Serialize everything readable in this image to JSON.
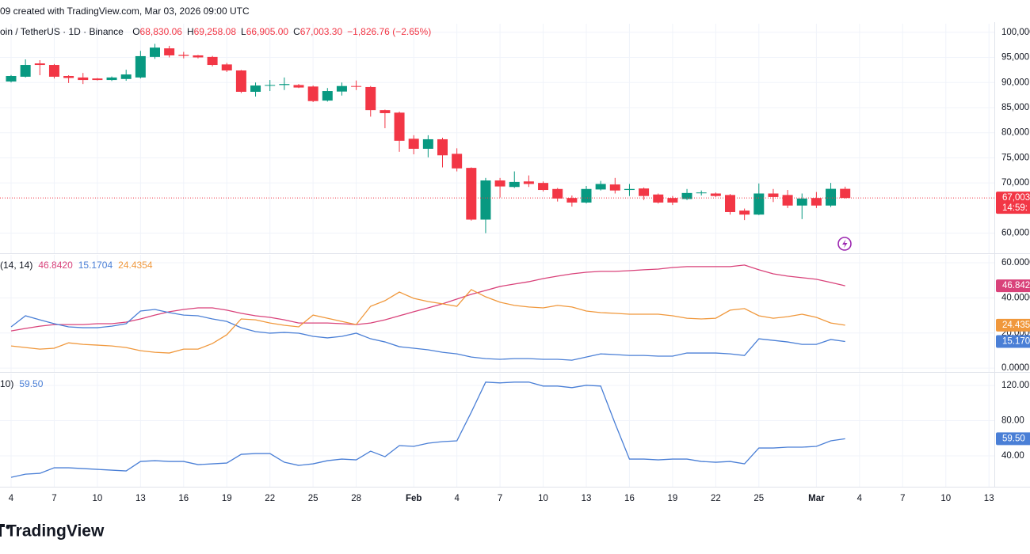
{
  "header": {
    "created": "09 created with TradingView.com, Mar 03, 2026 09:00 UTC",
    "symbol": "oin / TetherUS · 1D · Binance",
    "ohlc": [
      {
        "key": "O",
        "value": "68,830.06"
      },
      {
        "key": "H",
        "value": "69,258.08"
      },
      {
        "key": "L",
        "value": "66,905.00"
      },
      {
        "key": "C",
        "value": "67,003.30"
      }
    ],
    "change": "−1,826.76 (−2.65%)"
  },
  "branding": "TradingView",
  "chart_data": [
    {
      "type": "candlestick",
      "categories": [
        "4",
        null,
        null,
        "7",
        null,
        null,
        "10",
        null,
        null,
        "13",
        null,
        null,
        "16",
        null,
        null,
        "19",
        null,
        null,
        "22",
        null,
        null,
        "25",
        null,
        null,
        "28",
        null,
        null,
        null,
        "Feb",
        null,
        null,
        "4",
        null,
        null,
        "7",
        null,
        null,
        "10",
        null,
        null,
        "13",
        null,
        null,
        "16",
        null,
        null,
        "19",
        null,
        null,
        "22",
        null,
        null,
        "25",
        null,
        null,
        null,
        "Mar",
        null,
        null,
        "4",
        null,
        null,
        "7",
        null,
        null,
        "10",
        null,
        null,
        "13"
      ],
      "open": [
        90200,
        91150,
        93800,
        93500,
        91300,
        91000,
        90800,
        90500,
        90700,
        91000,
        95100,
        96800,
        95500,
        95400,
        95100,
        93600,
        92400,
        88150,
        89400,
        89500,
        89500,
        89200,
        86400,
        88200,
        89300,
        89100,
        84500,
        84000,
        78800,
        76800,
        78700,
        75800,
        73000,
        62700,
        70500,
        69200,
        70300,
        70000,
        68800,
        67000,
        66100,
        68700,
        69700,
        68600,
        68900,
        67700,
        67000,
        66800,
        68000,
        67900,
        67600,
        64500,
        63700,
        67900,
        67600,
        65500,
        67000,
        65500,
        68830.06,
        null,
        null,
        null,
        null,
        null,
        null,
        null,
        null,
        null,
        null
      ],
      "high": [
        91500,
        94600,
        94450,
        93700,
        91450,
        91900,
        90900,
        91200,
        92550,
        96300,
        97700,
        97300,
        96100,
        95500,
        95300,
        93900,
        92500,
        90000,
        90500,
        91000,
        89700,
        89400,
        88900,
        90000,
        90400,
        89300,
        84600,
        84200,
        79500,
        79500,
        79000,
        76900,
        73100,
        71000,
        71000,
        72300,
        71500,
        70300,
        69000,
        67500,
        69400,
        70400,
        71000,
        69800,
        69100,
        67900,
        67400,
        68800,
        68500,
        68100,
        67800,
        64900,
        69900,
        68800,
        68600,
        67900,
        68200,
        70000,
        69258.08,
        null,
        null,
        null,
        null,
        null,
        null,
        null,
        null,
        null,
        null
      ],
      "low": [
        90000,
        91000,
        91450,
        90800,
        89900,
        89700,
        90400,
        90300,
        90350,
        90800,
        94700,
        95000,
        94800,
        94800,
        93200,
        92100,
        87900,
        87200,
        88300,
        88500,
        88900,
        86100,
        86200,
        87400,
        88500,
        83200,
        80900,
        76200,
        75700,
        75100,
        73100,
        72300,
        62500,
        60000,
        67100,
        69000,
        69200,
        68300,
        66300,
        65300,
        65900,
        68500,
        67900,
        67400,
        66600,
        65900,
        65600,
        66600,
        67500,
        67200,
        63700,
        62600,
        63600,
        66200,
        65000,
        62800,
        65000,
        65200,
        66905.0,
        null,
        null,
        null,
        null,
        null,
        null,
        null,
        null,
        null,
        null
      ],
      "close": [
        91300,
        93500,
        93500,
        91150,
        90900,
        90500,
        90500,
        91000,
        91600,
        95250,
        96950,
        95400,
        95300,
        95000,
        93500,
        92400,
        88150,
        89400,
        89500,
        89700,
        89000,
        86300,
        88300,
        89300,
        89200,
        84500,
        83900,
        78400,
        76800,
        78700,
        75500,
        72900,
        62700,
        70500,
        69300,
        70200,
        69800,
        68600,
        66900,
        66100,
        68800,
        69800,
        68500,
        68800,
        67400,
        66100,
        66100,
        68000,
        68100,
        67400,
        64200,
        63700,
        67900,
        67200,
        65500,
        66900,
        65500,
        68830,
        67003.3,
        null,
        null,
        null,
        null,
        null,
        null,
        null,
        null,
        null,
        null
      ],
      "up_color": "#089981",
      "down_color": "#f23645",
      "ylim": [
        56000,
        101700
      ],
      "yticks": [
        {
          "value": 60000,
          "label": "60,000"
        },
        {
          "value": 70000,
          "label": "70,000"
        },
        {
          "value": 75000,
          "label": "75,000"
        },
        {
          "value": 80000,
          "label": "80,000"
        },
        {
          "value": 85000,
          "label": "85,000"
        },
        {
          "value": 90000,
          "label": "90,000"
        },
        {
          "value": 95000,
          "label": "95,000"
        },
        {
          "value": 100000,
          "label": "100,000"
        }
      ],
      "grid": true,
      "last_price_label": "67,003",
      "countdown": "14:59:"
    },
    {
      "type": "line",
      "legend_label": "(14, 14)",
      "ylim": [
        -2.2,
        64.5
      ],
      "yticks": [
        {
          "value": 0,
          "label": "0.0000"
        },
        {
          "value": 20,
          "label": "20.0000"
        },
        {
          "value": 40,
          "label": "40.0000"
        },
        {
          "value": 60,
          "label": "60.0000"
        }
      ],
      "grid": true,
      "series": [
        {
          "color": "#d9427a",
          "legend_value": "46.8420",
          "last_value_label": "46.842",
          "values": [
            21.2,
            22.6,
            23.9,
            24.8,
            24.8,
            24.8,
            25.3,
            25.3,
            26.2,
            28.0,
            30.2,
            32.1,
            33.4,
            34.3,
            34.3,
            33.0,
            31.2,
            29.8,
            28.9,
            27.5,
            25.7,
            25.7,
            25.7,
            25.3,
            24.8,
            25.7,
            27.5,
            29.8,
            32.1,
            34.3,
            36.6,
            39.3,
            42.0,
            44.2,
            46.5,
            47.9,
            49.2,
            51.0,
            52.4,
            53.7,
            54.6,
            55.1,
            55.1,
            55.5,
            56.0,
            56.4,
            57.3,
            57.8,
            57.8,
            57.8,
            57.8,
            58.7,
            56.0,
            53.7,
            52.4,
            51.5,
            50.6,
            48.8,
            46.842,
            null,
            null,
            null,
            null,
            null,
            null,
            null,
            null,
            null,
            null
          ]
        },
        {
          "color": "#4a7fd6",
          "legend_value": "15.1704",
          "last_value_label": "15.170",
          "values": [
            23.5,
            29.8,
            27.5,
            25.3,
            23.5,
            23.0,
            23.0,
            23.9,
            25.3,
            32.5,
            33.4,
            31.6,
            30.2,
            29.8,
            28.0,
            26.6,
            23.0,
            20.8,
            19.9,
            20.3,
            19.9,
            18.1,
            17.2,
            18.1,
            19.9,
            16.7,
            14.9,
            12.2,
            11.3,
            10.4,
            9.0,
            8.1,
            6.3,
            5.4,
            5.0,
            5.4,
            5.4,
            5.0,
            5.0,
            4.5,
            6.3,
            8.1,
            7.7,
            7.2,
            7.2,
            6.8,
            6.8,
            8.6,
            8.6,
            8.6,
            8.1,
            7.2,
            16.7,
            15.8,
            14.9,
            13.5,
            13.5,
            16.3,
            15.1704,
            null,
            null,
            null,
            null,
            null,
            null,
            null,
            null,
            null,
            null
          ]
        },
        {
          "color": "#f0983c",
          "legend_value": "24.4354",
          "last_value_label": "24.435",
          "values": [
            12.6,
            11.7,
            10.8,
            11.3,
            14.4,
            13.5,
            13.1,
            12.6,
            11.7,
            9.9,
            9.0,
            8.6,
            10.8,
            10.8,
            14.0,
            19.0,
            28.0,
            27.5,
            25.7,
            24.4,
            23.5,
            30.2,
            28.4,
            26.6,
            24.8,
            35.2,
            38.4,
            43.3,
            39.7,
            37.9,
            36.6,
            35.2,
            44.7,
            40.6,
            37.5,
            35.7,
            34.8,
            34.3,
            35.7,
            34.8,
            32.5,
            31.6,
            31.2,
            30.7,
            30.7,
            30.7,
            29.8,
            28.4,
            28.0,
            28.4,
            33.0,
            33.9,
            29.8,
            28.4,
            29.3,
            30.7,
            28.9,
            25.7,
            24.4354,
            null,
            null,
            null,
            null,
            null,
            null,
            null,
            null,
            null,
            null
          ]
        }
      ]
    },
    {
      "type": "line",
      "legend_label": "10)",
      "ylim": [
        5,
        133.5
      ],
      "yticks": [
        {
          "value": 40,
          "label": "40.00"
        },
        {
          "value": 80,
          "label": "80.00"
        },
        {
          "value": 120,
          "label": "120.00"
        }
      ],
      "grid": true,
      "series": [
        {
          "color": "#4a7fd6",
          "legend_value": "59.50",
          "last_value_label": "59.50",
          "values": [
            15.7,
            19.3,
            20.2,
            26.5,
            26.5,
            25.6,
            24.7,
            23.8,
            22.9,
            33.7,
            34.6,
            33.7,
            33.7,
            30.1,
            31.0,
            31.9,
            41.8,
            42.7,
            42.7,
            32.8,
            29.2,
            31.0,
            34.6,
            36.4,
            35.5,
            45.4,
            39.1,
            51.7,
            50.8,
            54.4,
            56.2,
            57.1,
            89.5,
            123.8,
            122.9,
            123.8,
            123.8,
            119.3,
            119.3,
            117.5,
            120.2,
            119.3,
            76.9,
            36.4,
            36.4,
            35.5,
            36.4,
            36.4,
            33.7,
            32.8,
            33.7,
            31.0,
            49.0,
            49.0,
            49.9,
            49.9,
            50.8,
            57.1,
            59.5,
            null,
            null,
            null,
            null,
            null,
            null,
            null,
            null,
            null,
            null
          ]
        }
      ]
    }
  ]
}
